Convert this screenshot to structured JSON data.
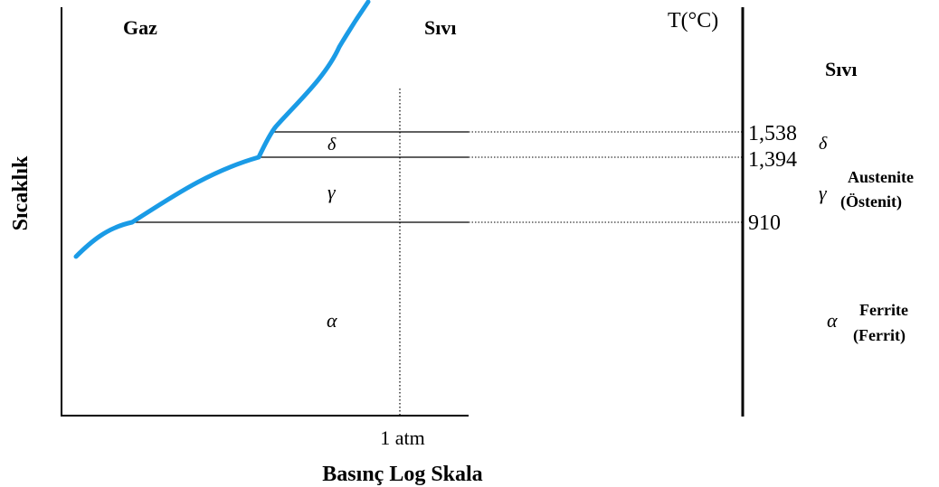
{
  "diagram": {
    "ylabel": "Sıcaklık",
    "xlabel": "Basınç Log Skala",
    "pressure_tick": "1 atm",
    "region_labels": {
      "gas": "Gaz",
      "liquid": "Sıvı",
      "delta": "δ",
      "gamma": "γ",
      "alpha": "α"
    },
    "temperature_axis": {
      "title": "T(°C)",
      "ticks": [
        "1,538",
        "1,394",
        "910"
      ]
    },
    "phases": {
      "liquid": "Sıvı",
      "delta_symbol": "δ",
      "gamma_symbol": "γ",
      "gamma_name": "Austenite",
      "gamma_name_tr": "(Östenit)",
      "alpha_symbol": "α",
      "alpha_name": "Ferrite",
      "alpha_name_tr": "(Ferrit)"
    },
    "colors": {
      "phase_boundary": "#1a9be6",
      "lines": "#000000"
    }
  }
}
